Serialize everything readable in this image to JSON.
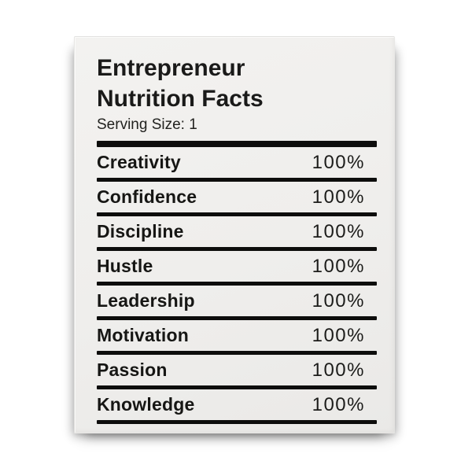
{
  "label": {
    "title_line1": "Entrepreneur",
    "title_line2": "Nutrition Facts",
    "serving_size": "Serving Size: 1",
    "rows": [
      {
        "label": "Creativity",
        "value": "100%"
      },
      {
        "label": "Confidence",
        "value": "100%"
      },
      {
        "label": "Discipline",
        "value": "100%"
      },
      {
        "label": "Hustle",
        "value": "100%"
      },
      {
        "label": "Leadership",
        "value": "100%"
      },
      {
        "label": "Motivation",
        "value": "100%"
      },
      {
        "label": "Passion",
        "value": "100%"
      },
      {
        "label": "Knowledge",
        "value": "100%"
      }
    ]
  },
  "colors": {
    "page_background": "#ffffff",
    "canvas_background": "#efeeec",
    "text": "#1a1a19",
    "divider_bar": "#0d0d0c"
  }
}
